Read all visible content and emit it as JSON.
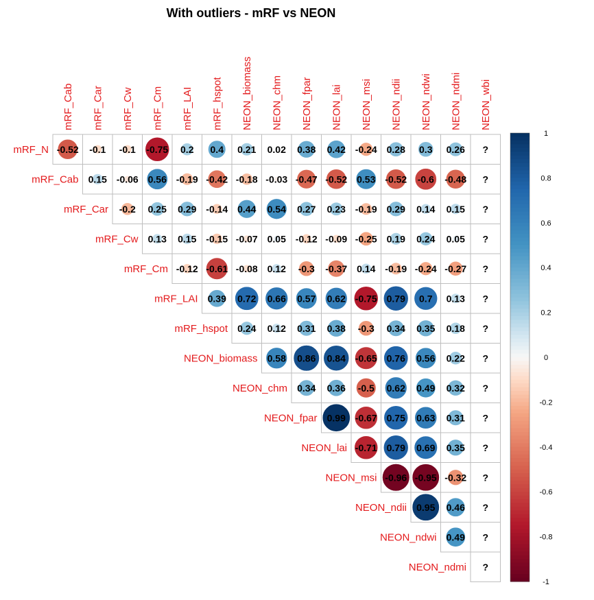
{
  "chart_data": {
    "type": "heatmap",
    "title": "With outliers - mRF vs NEON",
    "row_labels": [
      "mRF_N",
      "mRF_Cab",
      "mRF_Car",
      "mRF_Cw",
      "mRF_Cm",
      "mRF_LAI",
      "mRF_hspot",
      "NEON_biomass",
      "NEON_chm",
      "NEON_fpar",
      "NEON_lai",
      "NEON_msi",
      "NEON_ndii",
      "NEON_ndwi",
      "NEON_ndmi"
    ],
    "col_labels": [
      "mRF_Cab",
      "mRF_Car",
      "mRF_Cw",
      "mRF_Cm",
      "mRF_LAI",
      "mRF_hspot",
      "NEON_biomass",
      "NEON_chm",
      "NEON_fpar",
      "NEON_lai",
      "NEON_msi",
      "NEON_ndii",
      "NEON_ndwi",
      "NEON_ndmi",
      "NEON_wbi"
    ],
    "values": [
      [
        -0.52,
        -0.1,
        -0.1,
        -0.75,
        0.2,
        0.4,
        0.21,
        0.02,
        0.38,
        0.42,
        -0.24,
        0.28,
        0.3,
        0.26,
        null
      ],
      [
        0.15,
        -0.06,
        0.56,
        -0.19,
        -0.42,
        -0.18,
        -0.03,
        -0.47,
        -0.52,
        0.53,
        -0.52,
        -0.6,
        -0.48,
        null
      ],
      [
        -0.2,
        0.25,
        0.29,
        -0.14,
        0.44,
        0.54,
        0.27,
        0.23,
        -0.19,
        0.29,
        0.14,
        0.15,
        null
      ],
      [
        0.13,
        0.15,
        -0.15,
        -0.07,
        0.05,
        -0.12,
        -0.09,
        -0.25,
        0.19,
        0.24,
        0.05,
        null
      ],
      [
        -0.12,
        -0.61,
        -0.08,
        0.12,
        -0.3,
        -0.37,
        0.14,
        -0.19,
        -0.24,
        -0.27,
        null
      ],
      [
        0.39,
        0.72,
        0.66,
        0.57,
        0.62,
        -0.75,
        0.79,
        0.7,
        0.13,
        null
      ],
      [
        0.24,
        0.12,
        0.31,
        0.38,
        -0.3,
        0.34,
        0.35,
        0.18,
        null
      ],
      [
        0.58,
        0.86,
        0.84,
        -0.65,
        0.76,
        0.56,
        0.22,
        null
      ],
      [
        0.34,
        0.36,
        -0.5,
        0.62,
        0.49,
        0.32,
        null
      ],
      [
        0.99,
        -0.67,
        0.75,
        0.63,
        0.31,
        null
      ],
      [
        -0.71,
        0.79,
        0.69,
        0.35,
        null
      ],
      [
        -0.96,
        -0.95,
        -0.32,
        null
      ],
      [
        0.95,
        0.46,
        null
      ],
      [
        0.49,
        null
      ],
      [
        null
      ]
    ],
    "missing_symbol": "?",
    "colorbar": {
      "range": [
        -1,
        1
      ],
      "ticks": [
        "1",
        "0.8",
        "0.6",
        "0.4",
        "0.2",
        "0",
        "-0.2",
        "-0.4",
        "-0.6",
        "-0.8",
        "-1"
      ]
    },
    "colors": {
      "negative_end": "#67001F",
      "mid": "#F7F7F7",
      "positive_end": "#053061",
      "label": "#E31A1C",
      "grid": "#BEBEBE"
    }
  }
}
